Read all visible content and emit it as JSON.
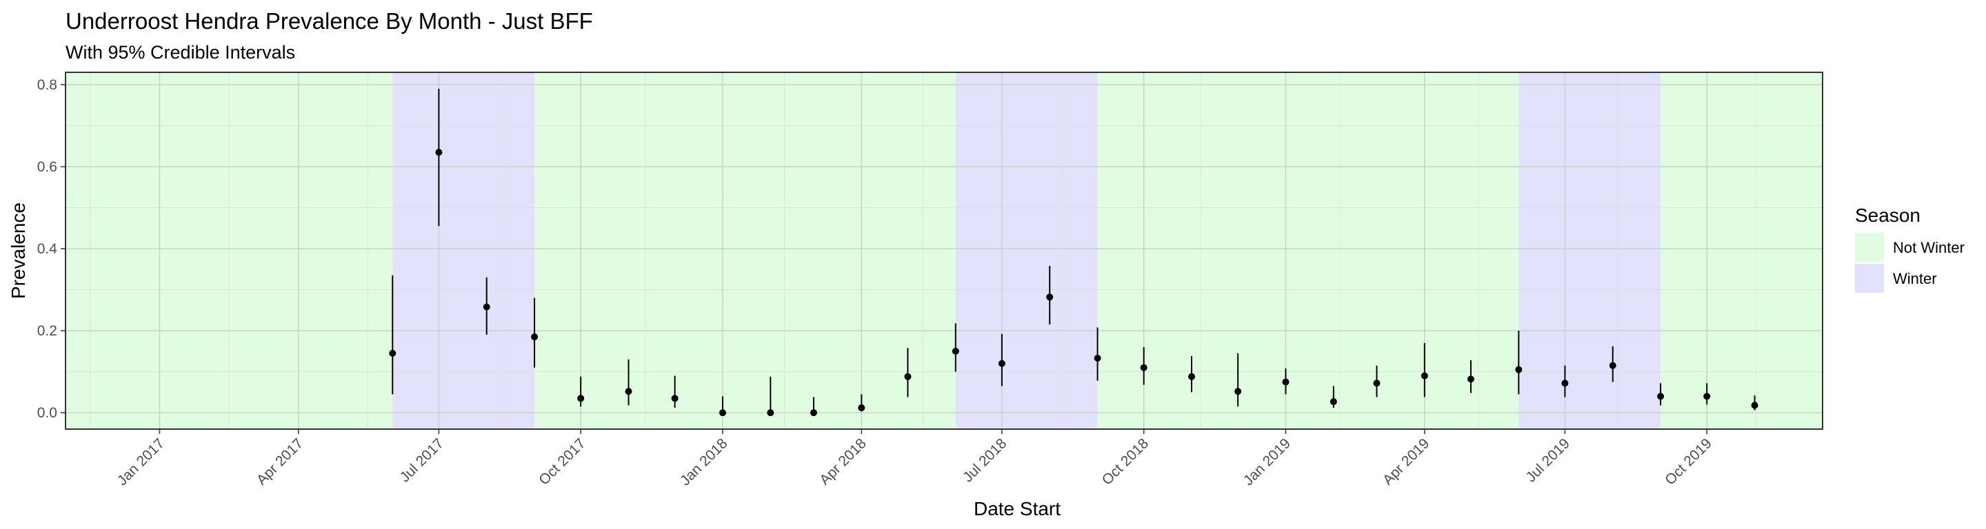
{
  "chart_data": {
    "type": "scatter",
    "title": "Underroost Hendra Prevalence By Month - Just BFF",
    "subtitle": "With 95% Credible Intervals",
    "xlabel": "Date Start",
    "ylabel": "Prevalence",
    "xlim": [
      "2016-11-01",
      "2019-12-15"
    ],
    "ylim": [
      -0.04,
      0.83
    ],
    "yticks": [
      0.0,
      0.2,
      0.4,
      0.6,
      0.8
    ],
    "ytick_labels": [
      "0.0",
      "0.2",
      "0.4",
      "0.6",
      "0.8"
    ],
    "xticks": [
      "2017-01-01",
      "2017-04-01",
      "2017-07-01",
      "2017-10-01",
      "2018-01-01",
      "2018-04-01",
      "2018-07-01",
      "2018-10-01",
      "2019-01-01",
      "2019-04-01",
      "2019-07-01",
      "2019-10-01"
    ],
    "xtick_labels": [
      "Jan 2017",
      "Apr 2017",
      "Jul 2017",
      "Oct 2017",
      "Jan 2018",
      "Apr 2018",
      "Jul 2018",
      "Oct 2018",
      "Jan 2019",
      "Apr 2019",
      "Jul 2019",
      "Oct 2019"
    ],
    "grid": true,
    "legend": {
      "title": "Season",
      "position": "right",
      "entries": [
        {
          "label": "Not Winter",
          "color": "#e1fde1"
        },
        {
          "label": "Winter",
          "color": "#e2e2fd"
        }
      ]
    },
    "season_bands": [
      {
        "season": "Not Winter",
        "start": "2016-11-01",
        "end": "2017-06-01"
      },
      {
        "season": "Winter",
        "start": "2017-06-01",
        "end": "2017-09-01"
      },
      {
        "season": "Not Winter",
        "start": "2017-09-01",
        "end": "2018-06-01"
      },
      {
        "season": "Winter",
        "start": "2018-06-01",
        "end": "2018-09-01"
      },
      {
        "season": "Not Winter",
        "start": "2018-09-01",
        "end": "2019-06-01"
      },
      {
        "season": "Winter",
        "start": "2019-06-01",
        "end": "2019-09-01"
      },
      {
        "season": "Not Winter",
        "start": "2019-09-01",
        "end": "2019-12-15"
      }
    ],
    "points": [
      {
        "x": "2017-06-01",
        "y": 0.145,
        "lo": 0.045,
        "hi": 0.335
      },
      {
        "x": "2017-07-01",
        "y": 0.635,
        "lo": 0.455,
        "hi": 0.79
      },
      {
        "x": "2017-08-01",
        "y": 0.258,
        "lo": 0.19,
        "hi": 0.33
      },
      {
        "x": "2017-09-01",
        "y": 0.185,
        "lo": 0.11,
        "hi": 0.28
      },
      {
        "x": "2017-10-01",
        "y": 0.035,
        "lo": 0.015,
        "hi": 0.088
      },
      {
        "x": "2017-11-01",
        "y": 0.052,
        "lo": 0.018,
        "hi": 0.13
      },
      {
        "x": "2017-12-01",
        "y": 0.035,
        "lo": 0.012,
        "hi": 0.09
      },
      {
        "x": "2018-01-01",
        "y": 0.0,
        "lo": 0.0,
        "hi": 0.04
      },
      {
        "x": "2018-02-01",
        "y": 0.0,
        "lo": 0.0,
        "hi": 0.088
      },
      {
        "x": "2018-03-01",
        "y": 0.0,
        "lo": 0.0,
        "hi": 0.038
      },
      {
        "x": "2018-04-01",
        "y": 0.012,
        "lo": 0.003,
        "hi": 0.045
      },
      {
        "x": "2018-05-01",
        "y": 0.088,
        "lo": 0.038,
        "hi": 0.158
      },
      {
        "x": "2018-06-01",
        "y": 0.15,
        "lo": 0.1,
        "hi": 0.218
      },
      {
        "x": "2018-07-01",
        "y": 0.12,
        "lo": 0.065,
        "hi": 0.192
      },
      {
        "x": "2018-08-01",
        "y": 0.282,
        "lo": 0.215,
        "hi": 0.358
      },
      {
        "x": "2018-09-01",
        "y": 0.133,
        "lo": 0.078,
        "hi": 0.208
      },
      {
        "x": "2018-10-01",
        "y": 0.11,
        "lo": 0.068,
        "hi": 0.16
      },
      {
        "x": "2018-11-01",
        "y": 0.088,
        "lo": 0.05,
        "hi": 0.138
      },
      {
        "x": "2018-12-01",
        "y": 0.052,
        "lo": 0.015,
        "hi": 0.145
      },
      {
        "x": "2019-01-01",
        "y": 0.075,
        "lo": 0.045,
        "hi": 0.108
      },
      {
        "x": "2019-02-01",
        "y": 0.027,
        "lo": 0.012,
        "hi": 0.065
      },
      {
        "x": "2019-03-01",
        "y": 0.072,
        "lo": 0.038,
        "hi": 0.115
      },
      {
        "x": "2019-04-01",
        "y": 0.09,
        "lo": 0.038,
        "hi": 0.17
      },
      {
        "x": "2019-05-01",
        "y": 0.082,
        "lo": 0.048,
        "hi": 0.128
      },
      {
        "x": "2019-06-01",
        "y": 0.105,
        "lo": 0.045,
        "hi": 0.2
      },
      {
        "x": "2019-07-01",
        "y": 0.072,
        "lo": 0.038,
        "hi": 0.115
      },
      {
        "x": "2019-08-01",
        "y": 0.115,
        "lo": 0.075,
        "hi": 0.162
      },
      {
        "x": "2019-09-01",
        "y": 0.04,
        "lo": 0.018,
        "hi": 0.072
      },
      {
        "x": "2019-10-01",
        "y": 0.04,
        "lo": 0.02,
        "hi": 0.072
      },
      {
        "x": "2019-11-01",
        "y": 0.018,
        "lo": 0.006,
        "hi": 0.042
      }
    ]
  }
}
